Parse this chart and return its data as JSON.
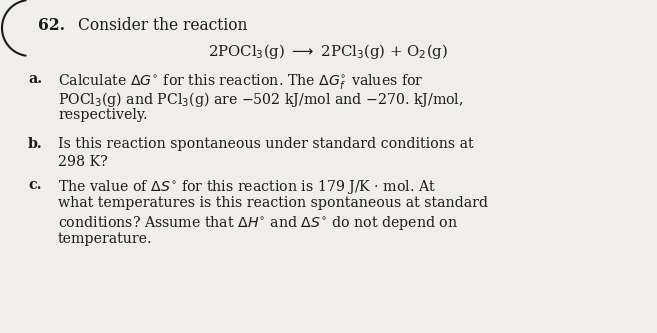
{
  "background_color": "#f0eeea",
  "text_color": "#1a1a1a",
  "fig_width": 6.57,
  "fig_height": 3.33,
  "dpi": 100,
  "problem_number": "62.",
  "header": "Consider the reaction",
  "part_a_label": "a.",
  "part_a_line1": "Calculate $\\Delta G^{\\circ}$ for this reaction. The $\\Delta G^{\\circ}_f$ values for",
  "part_a_line2": "POCl$_3$(g) and PCl$_3$(g) are $-$502 kJ/mol and $-$270. kJ/mol,",
  "part_a_line3": "respectively.",
  "part_b_label": "b.",
  "part_b_line1": "Is this reaction spontaneous under standard conditions at",
  "part_b_line2": "298 K?",
  "part_c_label": "c.",
  "part_c_line1": "The value of $\\Delta S^{\\circ}$ for this reaction is 179 J/K $\\cdot$ mol. At",
  "part_c_line2": "what temperatures is this reaction spontaneous at standard",
  "part_c_line3": "conditions? Assume that $\\Delta H^{\\circ}$ and $\\Delta S^{\\circ}$ do not depend on",
  "part_c_line4": "temperature.",
  "reaction_line": "2POCl$_3$(g) $\\longrightarrow$ 2PCl$_3$(g) + O$_2$(g)"
}
